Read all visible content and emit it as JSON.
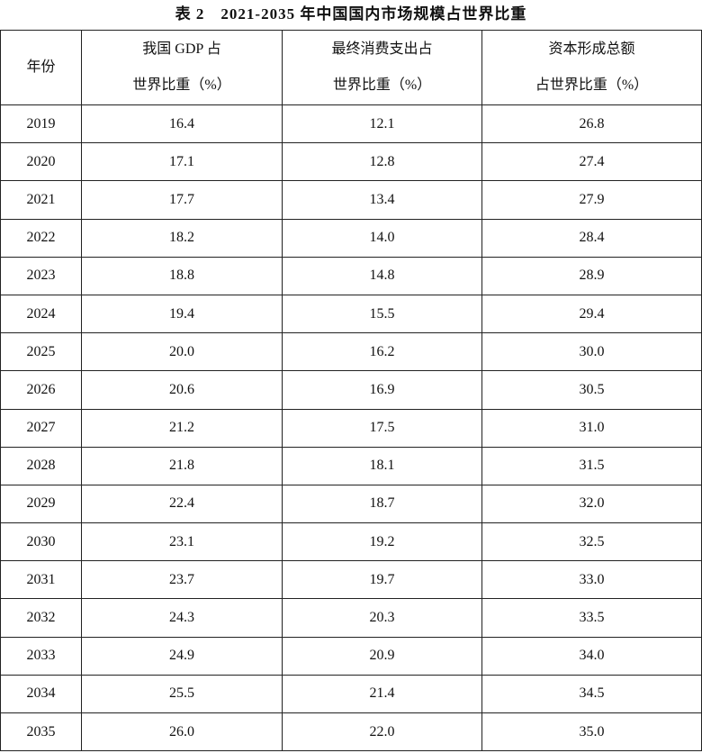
{
  "title": "表 2　2021-2035 年中国国内市场规模占世界比重",
  "table": {
    "header": [
      [
        "年份"
      ],
      [
        "我国 GDP 占",
        "世界比重（%）"
      ],
      [
        "最终消费支出占",
        "世界比重（%）"
      ],
      [
        "资本形成总额",
        "占世界比重（%）"
      ]
    ],
    "rows": [
      [
        "2019",
        "16.4",
        "12.1",
        "26.8"
      ],
      [
        "2020",
        "17.1",
        "12.8",
        "27.4"
      ],
      [
        "2021",
        "17.7",
        "13.4",
        "27.9"
      ],
      [
        "2022",
        "18.2",
        "14.0",
        "28.4"
      ],
      [
        "2023",
        "18.8",
        "14.8",
        "28.9"
      ],
      [
        "2024",
        "19.4",
        "15.5",
        "29.4"
      ],
      [
        "2025",
        "20.0",
        "16.2",
        "30.0"
      ],
      [
        "2026",
        "20.6",
        "16.9",
        "30.5"
      ],
      [
        "2027",
        "21.2",
        "17.5",
        "31.0"
      ],
      [
        "2028",
        "21.8",
        "18.1",
        "31.5"
      ],
      [
        "2029",
        "22.4",
        "18.7",
        "32.0"
      ],
      [
        "2030",
        "23.1",
        "19.2",
        "32.5"
      ],
      [
        "2031",
        "23.7",
        "19.7",
        "33.0"
      ],
      [
        "2032",
        "24.3",
        "20.3",
        "33.5"
      ],
      [
        "2033",
        "24.9",
        "20.9",
        "34.0"
      ],
      [
        "2034",
        "25.5",
        "21.4",
        "34.5"
      ],
      [
        "2035",
        "26.0",
        "22.0",
        "35.0"
      ]
    ]
  }
}
